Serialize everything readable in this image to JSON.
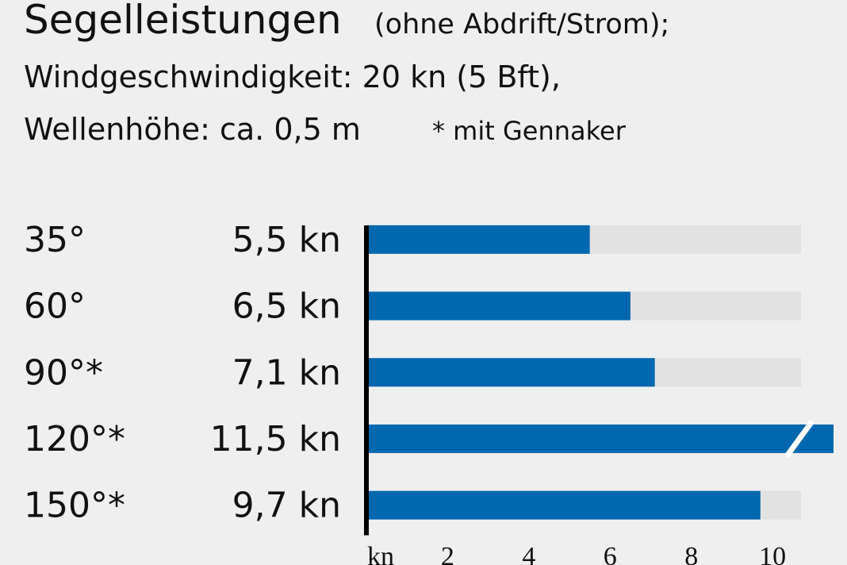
{
  "chart_data": {
    "type": "bar",
    "orientation": "horizontal",
    "title": "Segelleistungen",
    "subtitle": "(ohne Abdrift/Strom);",
    "lines": [
      "Windgeschwindigkeit: 20 kn (5 Bft),",
      "Wellenhöhe: ca. 0,5 m"
    ],
    "note": "* mit Gennaker",
    "categories": [
      "35°",
      "60°",
      "90°*",
      "120°*",
      "150°*"
    ],
    "values": [
      5.5,
      6.5,
      7.1,
      11.5,
      9.7
    ],
    "value_labels": [
      "5,5 kn",
      "6,5 kn",
      "7,1 kn",
      "11,5 kn",
      "9,7 kn"
    ],
    "color": "#0068ae",
    "xlabel": "kn",
    "xlim": [
      0,
      10.7
    ],
    "xticks": [
      2,
      4,
      6,
      8,
      10
    ]
  }
}
